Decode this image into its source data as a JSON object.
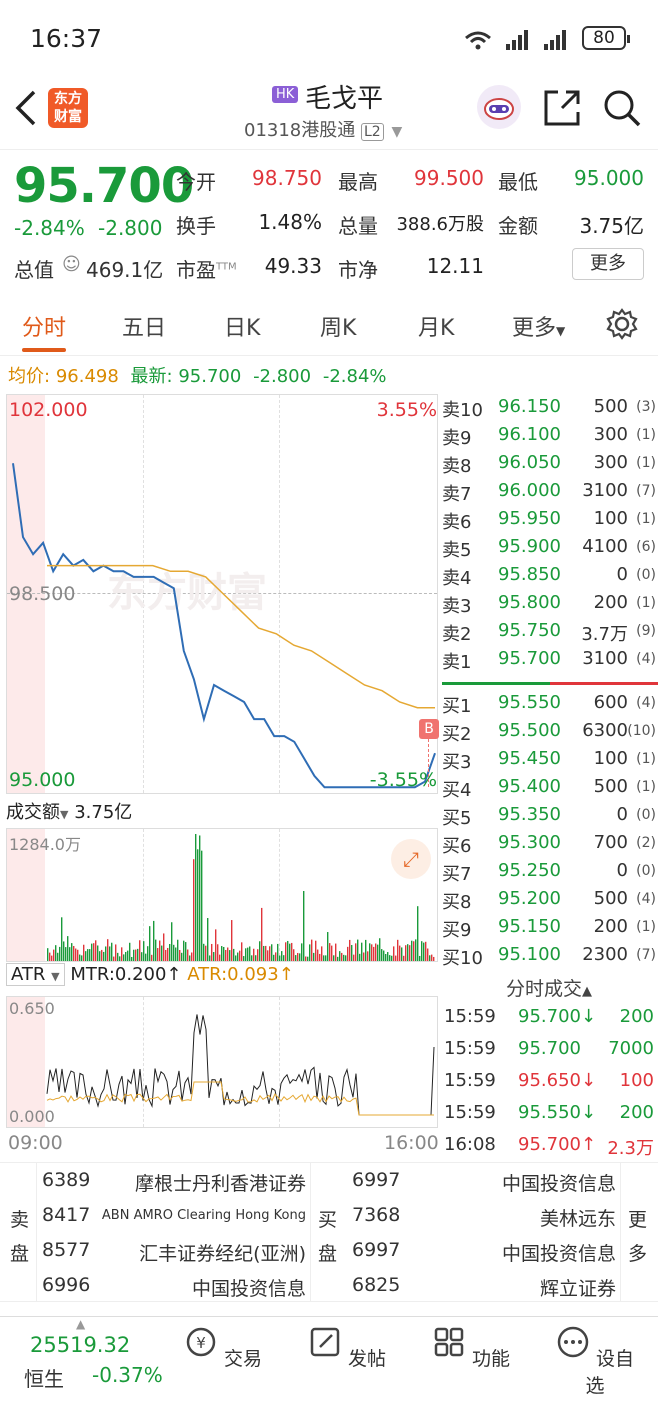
{
  "status_bar": {
    "time": "16:37",
    "battery": "80"
  },
  "header": {
    "back_icon": "chevron-left-icon",
    "logo_text": "东方财富",
    "market_badge": "HK",
    "stock_name": "毛戈平",
    "stock_code": "01318",
    "connect": "港股通",
    "level": "L2"
  },
  "quote": {
    "price": "95.700",
    "change_pct": "-2.84%",
    "change": "-2.800",
    "open_label": "今开",
    "open": "98.750",
    "high_label": "最高",
    "high": "99.500",
    "low_label": "最低",
    "low": "95.000",
    "turnover_label": "换手",
    "turnover": "1.48%",
    "volume_label": "总量",
    "volume": "388.6万股",
    "amount_label": "金额",
    "amount": "3.75亿",
    "mktcap_label": "总值",
    "mktcap": "469.1亿",
    "pe_label": "市盈",
    "pe_sup": "TTM",
    "pe": "49.33",
    "pb_label": "市净",
    "pb": "12.11",
    "more": "更多"
  },
  "tabs": [
    {
      "label": "分时"
    },
    {
      "label": "五日"
    },
    {
      "label": "日K"
    },
    {
      "label": "周K"
    },
    {
      "label": "月K"
    },
    {
      "label": "更多"
    }
  ],
  "avg_info": {
    "avg_label": "均价:",
    "avg": "96.498",
    "latest_label": "最新:",
    "latest": "95.700",
    "change": "-2.800",
    "change_pct": "-2.84%"
  },
  "chart_labels": {
    "top_price": "102.000",
    "top_pct": "3.55%",
    "mid_price": "98.500",
    "bottom_price": "95.000",
    "bottom_pct": "-3.55%",
    "marker": "B"
  },
  "chart_data": {
    "type": "line",
    "ylim": [
      95.0,
      102.0
    ],
    "series": [
      {
        "values": [
          100.8,
          99.5,
          99.2,
          99.4,
          98.9,
          99.2,
          99.0,
          99.1,
          98.9,
          99.0,
          98.9,
          98.9,
          98.8,
          98.8,
          98.8,
          98.7,
          98.6,
          97.5,
          97.0,
          96.3,
          96.9,
          96.8,
          96.7,
          96.6,
          96.3,
          96.3,
          96.0,
          96.0,
          95.9,
          95.6,
          95.3,
          95.1,
          95.1,
          95.1,
          95.1,
          95.1,
          95.1,
          95.1,
          95.1,
          95.1,
          95.1,
          95.2,
          95.7
        ]
      },
      {
        "values": [
          99.0,
          99.0,
          99.0,
          99.0,
          99.0,
          99.0,
          99.0,
          98.9,
          98.9,
          98.8,
          98.5,
          98.2,
          97.9,
          97.8,
          97.6,
          97.5,
          97.3,
          97.1,
          96.9,
          96.8,
          96.6,
          96.5,
          96.5
        ]
      }
    ]
  },
  "orderbook": {
    "asks": [
      {
        "label": "卖10",
        "price": "96.150",
        "vol": "500",
        "count": "(3)"
      },
      {
        "label": "卖9",
        "price": "96.100",
        "vol": "300",
        "count": "(1)"
      },
      {
        "label": "卖8",
        "price": "96.050",
        "vol": "300",
        "count": "(1)"
      },
      {
        "label": "卖7",
        "price": "96.000",
        "vol": "3100",
        "count": "(7)"
      },
      {
        "label": "卖6",
        "price": "95.950",
        "vol": "100",
        "count": "(1)"
      },
      {
        "label": "卖5",
        "price": "95.900",
        "vol": "4100",
        "count": "(6)"
      },
      {
        "label": "卖4",
        "price": "95.850",
        "vol": "0",
        "count": "(0)"
      },
      {
        "label": "卖3",
        "price": "95.800",
        "vol": "200",
        "count": "(1)"
      },
      {
        "label": "卖2",
        "price": "95.750",
        "vol": "3.7万",
        "count": "(9)"
      },
      {
        "label": "卖1",
        "price": "95.700",
        "vol": "3100",
        "count": "(4)"
      }
    ],
    "bids": [
      {
        "label": "买1",
        "price": "95.550",
        "vol": "600",
        "count": "(4)"
      },
      {
        "label": "买2",
        "price": "95.500",
        "vol": "6300",
        "count": "(10)"
      },
      {
        "label": "买3",
        "price": "95.450",
        "vol": "100",
        "count": "(1)"
      },
      {
        "label": "买4",
        "price": "95.400",
        "vol": "500",
        "count": "(1)"
      },
      {
        "label": "买5",
        "price": "95.350",
        "vol": "0",
        "count": "(0)"
      },
      {
        "label": "买6",
        "price": "95.300",
        "vol": "700",
        "count": "(2)"
      },
      {
        "label": "买7",
        "price": "95.250",
        "vol": "0",
        "count": "(0)"
      },
      {
        "label": "买8",
        "price": "95.200",
        "vol": "500",
        "count": "(4)"
      },
      {
        "label": "买9",
        "price": "95.150",
        "vol": "200",
        "count": "(1)"
      },
      {
        "label": "买10",
        "price": "95.100",
        "vol": "2300",
        "count": "(7)"
      }
    ]
  },
  "volume": {
    "selector": "成交额",
    "value": "3.75亿",
    "max_label": "1284.0万"
  },
  "atr": {
    "selector": "ATR",
    "mtr": "MTR:0.200↑",
    "atr": "ATR:0.093↑",
    "max_label": "0.650",
    "min_label": "0.000",
    "time_start": "09:00",
    "time_end": "16:00"
  },
  "ticks": {
    "title": "分时成交",
    "rows": [
      {
        "time": "15:59",
        "price": "95.700↓",
        "vol": "200",
        "color": "#1a9a3a"
      },
      {
        "time": "15:59",
        "price": "95.700",
        "vol": "7000",
        "color": "#1a9a3a"
      },
      {
        "time": "15:59",
        "price": "95.650↓",
        "vol": "100",
        "color": "#e0353b"
      },
      {
        "time": "15:59",
        "price": "95.550↓",
        "vol": "200",
        "color": "#1a9a3a"
      },
      {
        "time": "16:08",
        "price": "95.700↑",
        "vol": "2.3万",
        "color": "#e0353b"
      }
    ]
  },
  "brokers": {
    "sell_label_1": "卖",
    "sell_label_2": "盘",
    "buy_label_1": "买",
    "buy_label_2": "盘",
    "more_1": "更",
    "more_2": "多",
    "sell": [
      {
        "id": "6389",
        "name": "摩根士丹利香港证券"
      },
      {
        "id": "8417",
        "name": "ABN AMRO Clearing Hong Kong"
      },
      {
        "id": "8577",
        "name": "汇丰证券经纪(亚洲)"
      },
      {
        "id": "6996",
        "name": "中国投资信息"
      }
    ],
    "buy": [
      {
        "id": "6997",
        "name": "中国投资信息"
      },
      {
        "id": "7368",
        "name": "美林远东"
      },
      {
        "id": "6997",
        "name": "中国投资信息"
      },
      {
        "id": "6825",
        "name": "辉立证券"
      }
    ]
  },
  "bottom_bar": {
    "index_value": "25519.32",
    "index_name": "恒生",
    "index_change": "-0.37%",
    "items": [
      {
        "label": "交易"
      },
      {
        "label": "发帖"
      },
      {
        "label": "功能"
      },
      {
        "label": "设自选"
      }
    ]
  }
}
